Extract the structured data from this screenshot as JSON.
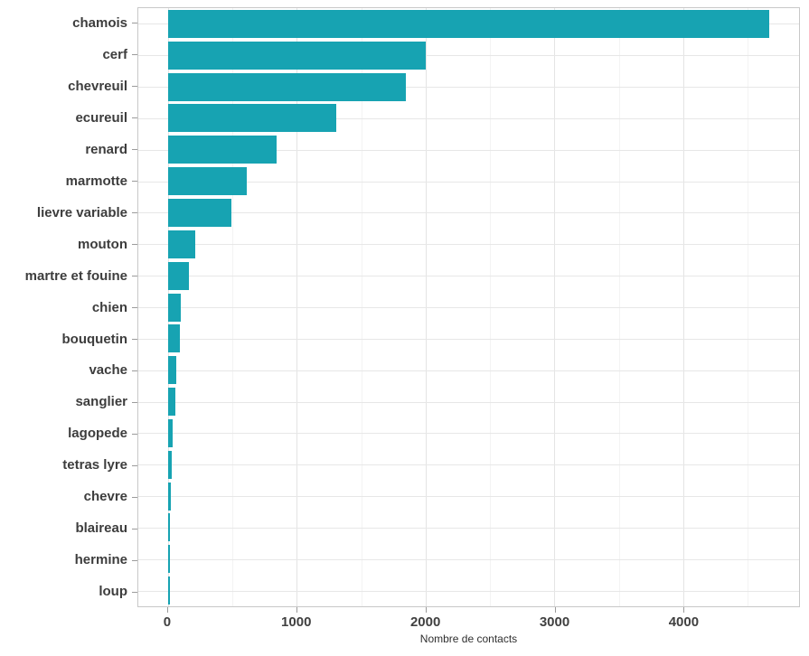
{
  "chart_data": {
    "type": "bar",
    "orientation": "horizontal",
    "title": "",
    "xlabel": "Nombre de contacts",
    "ylabel": "",
    "categories": [
      "chamois",
      "cerf",
      "chevreuil",
      "ecureuil",
      "renard",
      "marmotte",
      "lievre variable",
      "mouton",
      "martre et fouine",
      "chien",
      "bouquetin",
      "vache",
      "sanglier",
      "lagopede",
      "tetras lyre",
      "chevre",
      "blaireau",
      "hermine",
      "loup"
    ],
    "values": [
      4670,
      2000,
      1850,
      1310,
      845,
      610,
      490,
      210,
      160,
      98,
      90,
      67,
      55,
      37,
      33,
      25,
      15,
      13,
      4
    ],
    "x_ticks": [
      0,
      1000,
      2000,
      3000,
      4000
    ],
    "x_minor_ticks": [
      500,
      1500,
      2500,
      3500,
      4500
    ],
    "xlim": [
      -230,
      4900
    ],
    "grid": true,
    "legend": "none",
    "colors": {
      "bar": "#17a3b2",
      "grid_major": "#e4e4e4",
      "grid_minor": "#f3f3f3",
      "panel_border": "#c8c8c8",
      "tick_mark": "#9b9b9b",
      "axis_text": "#3d3d3d"
    }
  }
}
